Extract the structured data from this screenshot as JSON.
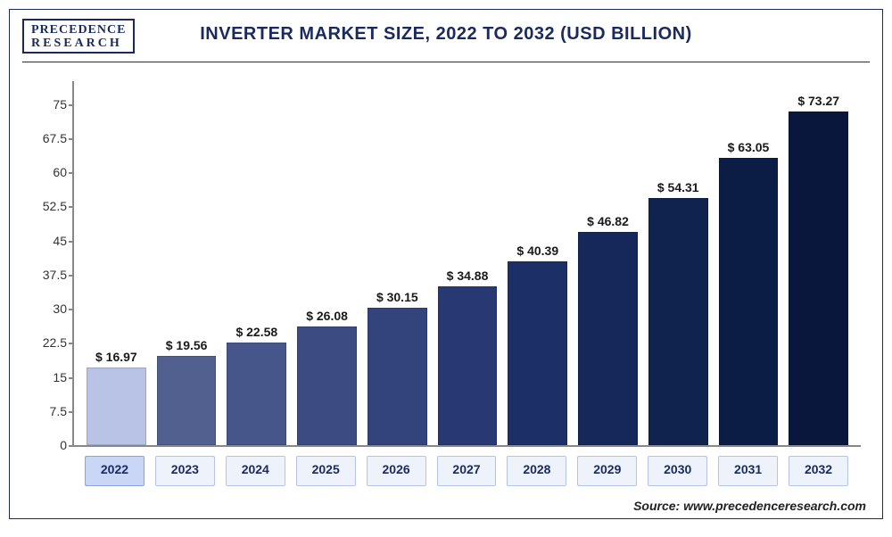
{
  "logo": {
    "line1": "PRECEDENCE",
    "line2": "RESEARCH"
  },
  "title": "INVERTER MARKET SIZE, 2022 TO 2032 (USD BILLION)",
  "source": "Source: www.precedenceresearch.com",
  "chart": {
    "type": "bar",
    "ylim": [
      0,
      80
    ],
    "ytick_step": 7.5,
    "yticks": [
      0,
      7.5,
      15,
      22.5,
      30,
      37.5,
      45,
      52.5,
      60,
      67.5,
      75
    ],
    "tick_fontsize": 14,
    "axis_color": "#888888",
    "title_color": "#1a2a5e",
    "label_fontsize": 14,
    "value_prefix": "$ ",
    "bar_width_ratio": 1.0,
    "background_color": "#ffffff",
    "xlabel_box_border": "#b7c3e6",
    "xlabel_box_bg": "#eef2fb",
    "xlabel_active_bg": "#c9d6f5",
    "categories": [
      "2022",
      "2023",
      "2024",
      "2025",
      "2026",
      "2027",
      "2028",
      "2029",
      "2030",
      "2031",
      "2032"
    ],
    "values": [
      16.97,
      19.56,
      22.58,
      26.08,
      30.15,
      34.88,
      40.39,
      46.82,
      54.31,
      63.05,
      73.27
    ],
    "bar_colors": [
      "#b8c3e6",
      "#51608f",
      "#46558a",
      "#3c4b82",
      "#33437c",
      "#283873",
      "#1d2f67",
      "#152859",
      "#10224e",
      "#0c1d45",
      "#08173b"
    ],
    "active_index": 0
  }
}
